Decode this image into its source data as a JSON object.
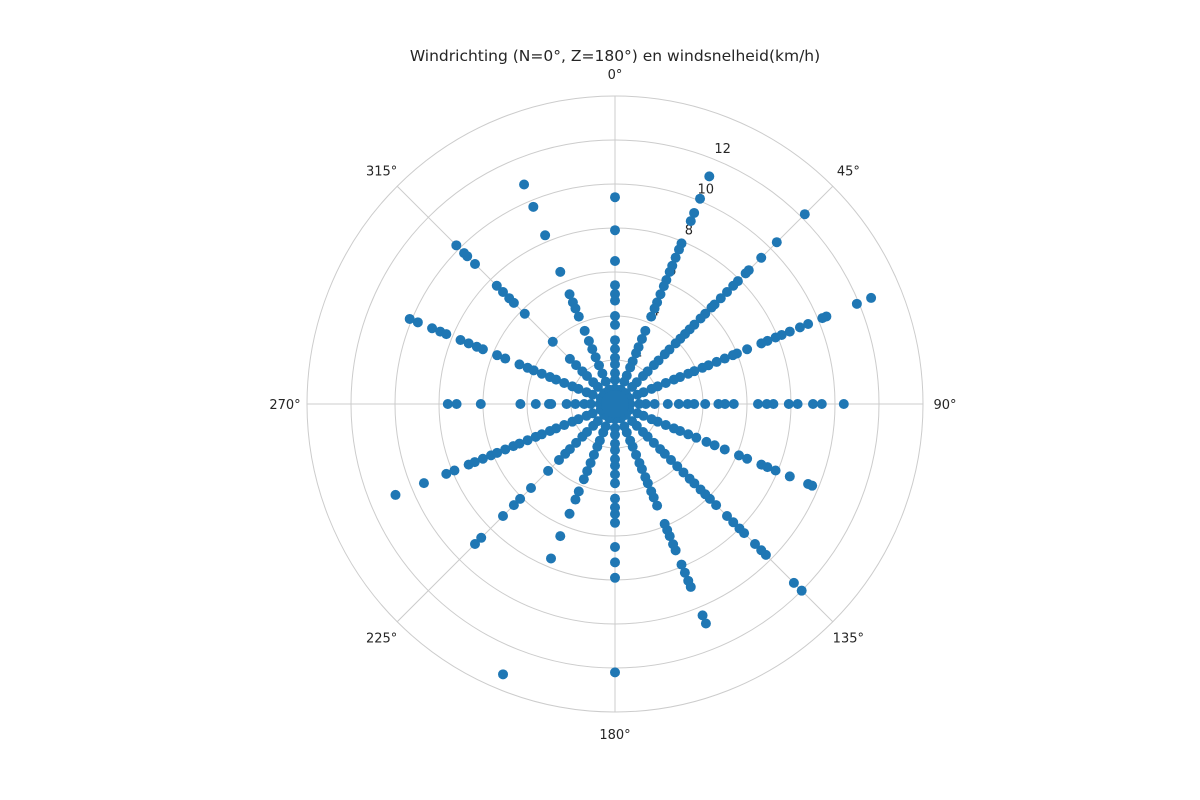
{
  "chart_data": {
    "type": "scatter",
    "projection": "polar",
    "title": "Windrichting (N=0°, Z=180°) en windsnelheid(km/h)",
    "theta_zero": "north",
    "theta_direction": "clockwise",
    "theta_ticks": [
      "0°",
      "45°",
      "90°",
      "135°",
      "180°",
      "225°",
      "270°",
      "315°"
    ],
    "theta_tick_values": [
      0,
      45,
      90,
      135,
      180,
      225,
      270,
      315
    ],
    "r_ticks": [
      "2",
      "4",
      "6",
      "8",
      "10",
      "12"
    ],
    "r_tick_values": [
      2,
      4,
      6,
      8,
      10,
      12
    ],
    "rlim": [
      0,
      14
    ],
    "grid": true,
    "marker_color": "#1f77b4",
    "series": [
      {
        "direction": 0,
        "speeds": [
          9.4,
          7.9,
          6.5,
          5.4,
          5.0,
          4.7,
          4.0,
          3.6,
          2.9,
          2.5,
          2.1,
          1.8,
          1.4,
          1.1,
          0.7,
          0.4
        ]
      },
      {
        "direction": 22.5,
        "speeds": [
          11.2,
          10.1,
          9.4,
          9.0,
          7.9,
          7.6,
          7.2,
          6.8,
          6.5,
          6.1,
          5.8,
          5.4,
          5.0,
          4.7,
          4.3,
          3.6,
          3.2,
          2.8,
          2.5,
          2.1,
          1.8,
          1.4,
          1.1,
          0.7,
          0.4
        ]
      },
      {
        "direction": 45,
        "speeds": [
          12.2,
          10.4,
          9.4,
          8.6,
          8.4,
          7.9,
          7.6,
          7.2,
          6.8,
          6.4,
          6.2,
          5.8,
          5.5,
          5.1,
          4.8,
          4.5,
          4.2,
          3.9,
          3.5,
          3.2,
          2.8,
          2.5,
          2.1,
          1.8,
          1.4,
          1.1,
          0.7,
          0.4
        ]
      },
      {
        "direction": 67.5,
        "speeds": [
          12.6,
          11.9,
          10.4,
          10.2,
          9.5,
          9.1,
          8.6,
          8.2,
          7.9,
          7.5,
          7.2,
          6.5,
          6.0,
          5.8,
          5.4,
          5.0,
          4.6,
          4.3,
          3.9,
          3.6,
          3.2,
          2.9,
          2.5,
          2.1,
          1.8,
          1.4,
          1.1,
          0.7,
          0.4
        ]
      },
      {
        "direction": 90,
        "speeds": [
          10.4,
          9.4,
          9.0,
          8.3,
          7.9,
          7.2,
          6.9,
          6.5,
          5.4,
          5.0,
          4.7,
          4.1,
          3.6,
          3.3,
          2.9,
          2.4,
          1.8,
          1.4,
          1.1,
          0.7,
          0.4
        ]
      },
      {
        "direction": 112.5,
        "speeds": [
          9.7,
          9.5,
          8.6,
          7.9,
          7.5,
          7.2,
          6.5,
          6.1,
          5.4,
          4.9,
          4.5,
          4.0,
          3.6,
          3.2,
          2.9,
          2.5,
          2.1,
          1.8,
          1.4,
          1.1,
          0.7,
          0.4
        ]
      },
      {
        "direction": 135,
        "speeds": [
          12.0,
          11.5,
          9.7,
          9.4,
          9.0,
          8.3,
          8.0,
          7.6,
          7.2,
          6.5,
          6.1,
          5.8,
          5.5,
          5.1,
          4.8,
          4.4,
          4.0,
          3.6,
          3.2,
          2.9,
          2.5,
          2.1,
          1.8,
          1.4,
          1.1,
          0.7,
          0.4
        ]
      },
      {
        "direction": 157.5,
        "speeds": [
          10.8,
          10.4,
          9.0,
          8.7,
          8.3,
          7.9,
          7.2,
          6.9,
          6.5,
          6.2,
          5.9,
          5.0,
          4.6,
          4.3,
          3.9,
          3.6,
          3.2,
          2.9,
          2.5,
          2.1,
          1.8,
          1.4,
          1.1,
          0.7,
          0.4
        ]
      },
      {
        "direction": 180,
        "speeds": [
          12.2,
          7.9,
          7.2,
          6.5,
          5.4,
          5.0,
          4.7,
          4.3,
          3.6,
          3.2,
          2.8,
          2.5,
          2.1,
          1.8,
          1.4,
          1.1,
          0.7,
          0.4
        ]
      },
      {
        "direction": 202.5,
        "speeds": [
          13.3,
          7.6,
          6.5,
          5.4,
          4.7,
          4.3,
          3.7,
          3.3,
          2.9,
          2.5,
          2.1,
          1.8,
          1.4,
          1.1,
          0.7,
          0.4
        ]
      },
      {
        "direction": 225,
        "speeds": [
          9.0,
          8.6,
          7.2,
          6.5,
          6.1,
          5.4,
          4.3,
          3.6,
          3.2,
          2.9,
          2.5,
          2.1,
          1.8,
          1.4,
          1.1,
          0.7,
          0.4
        ]
      },
      {
        "direction": 247.5,
        "speeds": [
          10.8,
          9.4,
          8.3,
          7.9,
          7.2,
          6.9,
          6.5,
          6.1,
          5.8,
          5.4,
          5.0,
          4.7,
          4.3,
          3.9,
          3.6,
          3.2,
          2.9,
          2.5,
          2.1,
          1.8,
          1.4,
          1.1,
          0.7,
          0.4
        ]
      },
      {
        "direction": 270,
        "speeds": [
          7.6,
          7.2,
          6.1,
          4.3,
          3.6,
          3.0,
          2.9,
          2.2,
          1.8,
          1.4,
          1.1,
          0.7,
          0.4
        ]
      },
      {
        "direction": 292.5,
        "speeds": [
          10.1,
          9.7,
          9.0,
          8.6,
          8.3,
          7.6,
          7.2,
          6.8,
          6.5,
          5.8,
          5.4,
          4.7,
          4.3,
          4.0,
          3.6,
          3.2,
          2.9,
          2.5,
          2.1,
          1.8,
          1.4,
          1.1,
          0.7,
          0.4
        ]
      },
      {
        "direction": 315,
        "speeds": [
          10.2,
          9.7,
          9.5,
          9.0,
          7.6,
          7.2,
          6.8,
          6.5,
          5.8,
          4.0,
          2.9,
          2.5,
          2.1,
          1.8,
          1.4,
          1.1,
          0.7,
          0.4
        ]
      },
      {
        "direction": 337.5,
        "speeds": [
          10.8,
          9.7,
          8.3,
          6.5,
          5.4,
          5.0,
          4.7,
          4.3,
          3.6,
          3.1,
          2.7,
          2.3,
          1.9,
          1.5,
          1.1,
          0.7,
          0.4
        ]
      }
    ]
  }
}
